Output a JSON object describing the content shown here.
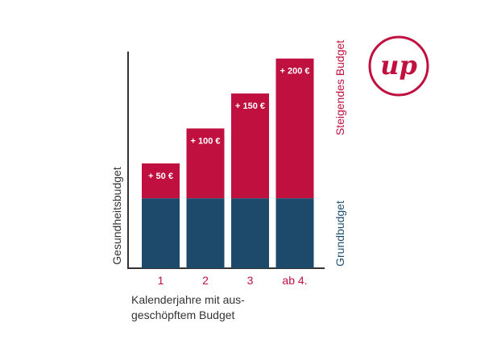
{
  "chart_data": {
    "type": "bar",
    "stacked": true,
    "categories": [
      "1",
      "2",
      "3",
      "ab 4."
    ],
    "series": [
      {
        "key": "grund",
        "values": [
          100,
          100,
          100,
          100
        ],
        "color": "#1d4a6b"
      },
      {
        "key": "steigend",
        "values": [
          50,
          100,
          150,
          200
        ],
        "color": "#c0103f"
      }
    ],
    "data_labels": [
      "+ 50 €",
      "+ 100 €",
      "+ 150 €",
      "+ 200 €"
    ],
    "ylim": [
      0,
      310
    ],
    "grid": false,
    "ylabel": "Gesundheitsbudget",
    "xlabel": "Kalenderjahre mit aus-\ngeschöpftem Budget",
    "right_labels": {
      "steigend": "Steigendes Budget",
      "grund": "Grundbudget"
    }
  },
  "badge": {
    "text": "up",
    "color": "#c0103f"
  },
  "colors": {
    "category_text": "#c0103f",
    "axis": "#333333"
  }
}
